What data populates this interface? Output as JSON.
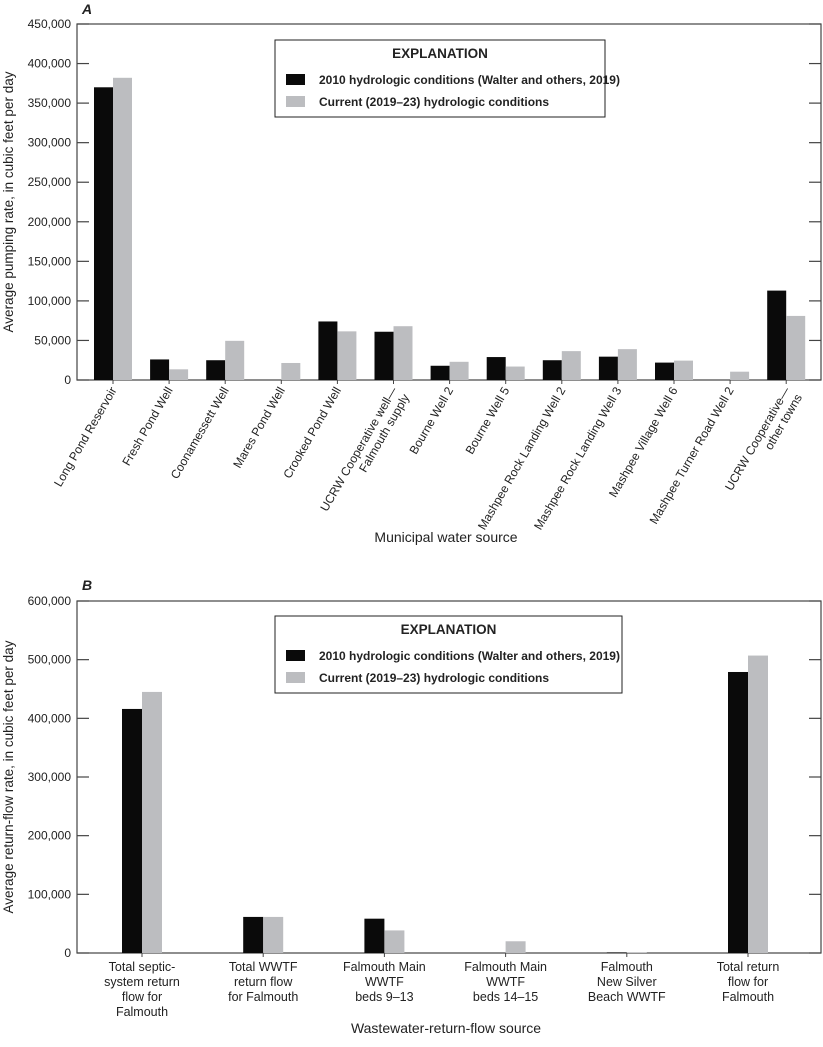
{
  "chart_data": [
    {
      "panel_label": "A",
      "type": "bar",
      "xlabel": "Municipal water source",
      "ylabel": "Average pumping rate, in cubic feet per day",
      "ylim": [
        0,
        450000
      ],
      "yticks": [
        0,
        50000,
        100000,
        150000,
        200000,
        250000,
        300000,
        350000,
        400000,
        450000
      ],
      "ytick_labels": [
        "0",
        "50,000",
        "100,000",
        "150,000",
        "200,000",
        "250,000",
        "300,000",
        "350,000",
        "400,000",
        "450,000"
      ],
      "categories": [
        "Long Pond Reservoir",
        "Fresh Pond Well",
        "Coonamessett Well",
        "Mares Pond Well",
        "Crooked Pond Well",
        "UCRW Cooperative well—|Falmouth supply",
        "Bourne Well 2",
        "Bourne Well 5",
        "Mashpee Rock Landing Well 2",
        "Mashpee Rock Landing Well 3",
        "Mashpee Village Well 6",
        "Mashpee Turner Road Well 2",
        "UCRW Cooperative—|other towns"
      ],
      "legend_title": "EXPLANATION",
      "legend_position": "top-center",
      "series": [
        {
          "name": "2010 hydrologic conditions (Walter and others, 2019)",
          "color": "#0a0a0a",
          "values": [
            370000,
            26000,
            25000,
            0,
            74000,
            61000,
            18000,
            29000,
            25000,
            29500,
            22000,
            0,
            113000
          ]
        },
        {
          "name": "Current (2019–23) hydrologic conditions",
          "color": "#bcbdc0",
          "values": [
            382000,
            13500,
            49500,
            21500,
            61500,
            68000,
            23000,
            17000,
            36500,
            39000,
            24500,
            10500,
            81000
          ]
        }
      ]
    },
    {
      "panel_label": "B",
      "type": "bar",
      "xlabel": "Wastewater-return-flow source",
      "ylabel": "Average return-flow rate, in cubic feet per day",
      "ylim": [
        0,
        600000
      ],
      "yticks": [
        0,
        100000,
        200000,
        300000,
        400000,
        500000,
        600000
      ],
      "ytick_labels": [
        "0",
        "100,000",
        "200,000",
        "300,000",
        "400,000",
        "500,000",
        "600,000"
      ],
      "categories": [
        "Total septic-|system return|flow for|Falmouth",
        "Total WWTF|return flow|for Falmouth",
        "Falmouth Main|WWTF|beds 9–13",
        "Falmouth Main|WWTF|beds 14–15",
        "Falmouth|New Silver|Beach WWTF",
        "Total return|flow for|Falmouth"
      ],
      "legend_title": "EXPLANATION",
      "legend_position": "top-center",
      "series": [
        {
          "name": "2010 hydrologic conditions (Walter and others, 2019)",
          "color": "#0a0a0a",
          "values": [
            416000,
            61500,
            58500,
            0,
            1000,
            479000
          ]
        },
        {
          "name": "Current (2019–23) hydrologic conditions",
          "color": "#bcbdc0",
          "values": [
            445000,
            61500,
            38500,
            20000,
            1000,
            507000
          ]
        }
      ]
    }
  ]
}
